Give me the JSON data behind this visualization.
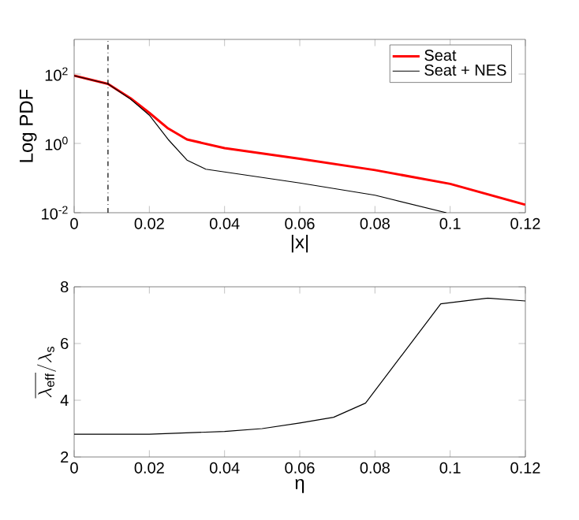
{
  "chart_data": [
    {
      "type": "line",
      "xlabel": "|x|",
      "ylabel": "Log PDF",
      "log": "y",
      "legend": "top right",
      "xlim": [
        0,
        0.12
      ],
      "xticks": [
        0,
        0.02,
        0.04,
        0.06,
        0.08,
        0.1,
        0.12
      ],
      "ylim": [
        0.01,
        1000
      ],
      "yticks": [
        {
          "value": 0.01,
          "label": "10$^{-2}$"
        },
        {
          "value": 1,
          "label": "10$^{0}$"
        },
        {
          "value": 100,
          "label": "10$^{2}$"
        }
      ],
      "ref_lines": [
        {
          "axis": "x",
          "value": 0.009,
          "color": "#000000",
          "line_style": "dashdot"
        }
      ],
      "series": [
        {
          "name": "Seat",
          "color": "#ff0000",
          "x": [
            0,
            0.009,
            0.015,
            0.02,
            0.025,
            0.03,
            0.04,
            0.06,
            0.08,
            0.1,
            0.12
          ],
          "values": [
            90,
            52,
            20,
            7.6,
            2.7,
            1.3,
            0.73,
            0.36,
            0.17,
            0.068,
            0.017
          ]
        },
        {
          "name": "Seat + NES",
          "color": "#000000",
          "x": [
            0,
            0.009,
            0.015,
            0.02,
            0.025,
            0.03,
            0.035,
            0.04,
            0.06,
            0.08,
            0.099
          ],
          "values": [
            90,
            52,
            19,
            6.5,
            1.3,
            0.33,
            0.18,
            0.15,
            0.072,
            0.032,
            0.01
          ]
        }
      ]
    },
    {
      "type": "line",
      "xlabel": "η",
      "ylabel": "\\overline{\\lambda_{\\mathrm{eff}}} / \\lambda_{\\mathrm{s}}",
      "xlim": [
        0,
        0.12
      ],
      "xticks": [
        0,
        0.02,
        0.04,
        0.06,
        0.08,
        0.1,
        0.12
      ],
      "ylim": [
        2,
        8
      ],
      "yticks": [
        2,
        4,
        6,
        8
      ],
      "series": [
        {
          "color": "#000000",
          "x": [
            0,
            0.02,
            0.04,
            0.05,
            0.06,
            0.069,
            0.0775,
            0.0975,
            0.11,
            0.12
          ],
          "values": [
            2.8,
            2.8,
            2.9,
            3.0,
            3.2,
            3.4,
            3.9,
            7.4,
            7.6,
            7.5
          ]
        }
      ]
    }
  ]
}
